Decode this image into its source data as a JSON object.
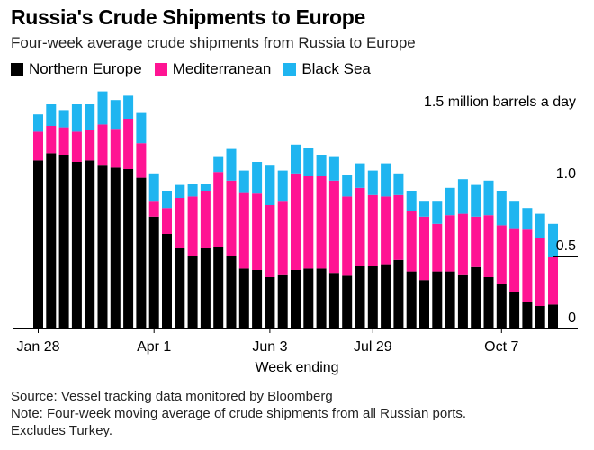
{
  "title": "Russia's Crude Shipments to Europe",
  "subtitle": "Four-week average crude shipments from Russia to Europe",
  "legend": [
    {
      "label": "Northern Europe",
      "color": "#000000"
    },
    {
      "label": "Mediterranean",
      "color": "#ff1493"
    },
    {
      "label": "Black Sea",
      "color": "#1fb5f0"
    }
  ],
  "footer": {
    "source": "Source: Vessel tracking data monitored by Bloomberg",
    "note": "Note: Four-week moving average of crude shipments from all Russian ports.",
    "note2": "Excludes Turkey."
  },
  "chart_data": {
    "type": "bar",
    "stacked": true,
    "unit_label": "1.5 million barrels a day",
    "xlabel": "Week ending",
    "ylabel": "",
    "ylim": [
      0,
      1.5
    ],
    "yticks": [
      {
        "value": 1.5,
        "label": "1.5 million barrels a day"
      },
      {
        "value": 1.0,
        "label": "1.0"
      },
      {
        "value": 0.5,
        "label": "0.5"
      },
      {
        "value": 0,
        "label": "0"
      }
    ],
    "xticks": [
      {
        "index": 0,
        "label": "Jan 28"
      },
      {
        "index": 9,
        "label": "Apr 1"
      },
      {
        "index": 18,
        "label": "Jun 3"
      },
      {
        "index": 26,
        "label": "Jul 29"
      },
      {
        "index": 36,
        "label": "Oct 7"
      }
    ],
    "series": [
      {
        "name": "Northern Europe",
        "color": "#000000",
        "values": [
          1.16,
          1.21,
          1.2,
          1.15,
          1.16,
          1.13,
          1.11,
          1.1,
          1.04,
          0.77,
          0.65,
          0.55,
          0.5,
          0.55,
          0.56,
          0.5,
          0.41,
          0.4,
          0.35,
          0.37,
          0.4,
          0.41,
          0.41,
          0.38,
          0.36,
          0.43,
          0.43,
          0.44,
          0.47,
          0.39,
          0.33,
          0.39,
          0.39,
          0.37,
          0.42,
          0.35,
          0.3,
          0.25,
          0.18,
          0.15,
          0.16
        ]
      },
      {
        "name": "Mediterranean",
        "color": "#ff1493",
        "values": [
          0.2,
          0.19,
          0.19,
          0.21,
          0.21,
          0.28,
          0.27,
          0.35,
          0.24,
          0.11,
          0.18,
          0.35,
          0.41,
          0.4,
          0.52,
          0.52,
          0.53,
          0.53,
          0.5,
          0.51,
          0.67,
          0.64,
          0.64,
          0.64,
          0.55,
          0.54,
          0.49,
          0.47,
          0.45,
          0.42,
          0.44,
          0.33,
          0.39,
          0.42,
          0.35,
          0.43,
          0.41,
          0.44,
          0.5,
          0.47,
          0.33
        ]
      },
      {
        "name": "Black Sea",
        "color": "#1fb5f0",
        "values": [
          0.12,
          0.15,
          0.12,
          0.19,
          0.18,
          0.23,
          0.2,
          0.16,
          0.21,
          0.19,
          0.12,
          0.09,
          0.09,
          0.05,
          0.11,
          0.22,
          0.15,
          0.22,
          0.28,
          0.21,
          0.2,
          0.2,
          0.15,
          0.17,
          0.15,
          0.17,
          0.17,
          0.23,
          0.15,
          0.14,
          0.11,
          0.16,
          0.19,
          0.24,
          0.22,
          0.24,
          0.24,
          0.19,
          0.15,
          0.17,
          0.23
        ]
      }
    ],
    "grid": false
  }
}
